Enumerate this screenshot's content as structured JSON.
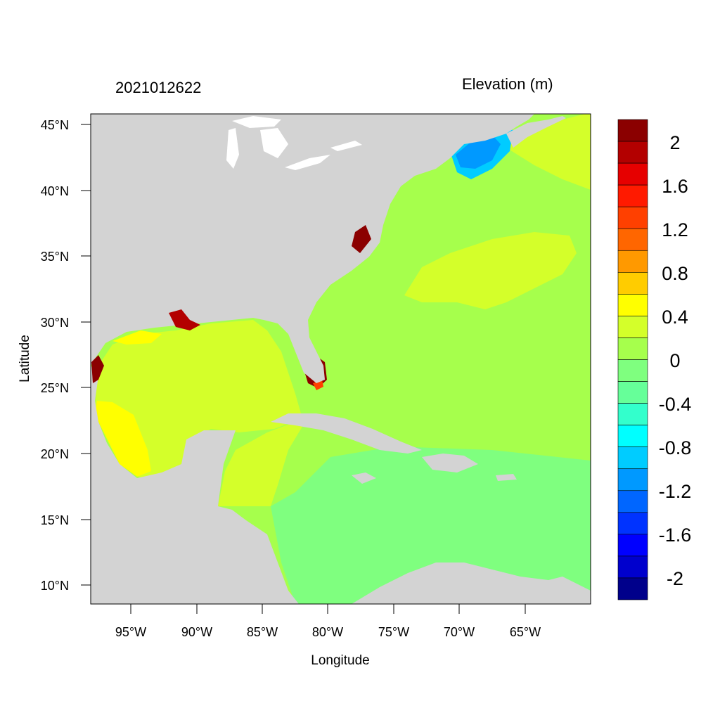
{
  "map": {
    "timestamp": "2021012622",
    "variable_title": "Elevation (m)",
    "xlabel": "Longitude",
    "ylabel": "Latitude",
    "lon_ticks": [
      "95°W",
      "90°W",
      "85°W",
      "80°W",
      "75°W",
      "70°W",
      "65°W"
    ],
    "lat_ticks": [
      "45°N",
      "40°N",
      "35°N",
      "30°N",
      "25°N",
      "20°N",
      "15°N",
      "10°N"
    ],
    "land_color": "#d3d3d3",
    "colorbar": {
      "colors": [
        "#00008b",
        "#0000cd",
        "#0000ff",
        "#0033ff",
        "#0066ff",
        "#0099ff",
        "#00ccff",
        "#00ffff",
        "#33ffcc",
        "#66ff99",
        "#7fff7f",
        "#a6ff4c",
        "#d4ff2a",
        "#ffff00",
        "#ffcc00",
        "#ff9900",
        "#ff6600",
        "#ff4000",
        "#ff1a00",
        "#e60000",
        "#b30000",
        "#8b0000"
      ],
      "labels": [
        "2",
        "1.6",
        "1.2",
        "0.8",
        "0.4",
        "0",
        "-0.4",
        "-0.8",
        "-1.2",
        "-1.6",
        "-2"
      ]
    }
  }
}
